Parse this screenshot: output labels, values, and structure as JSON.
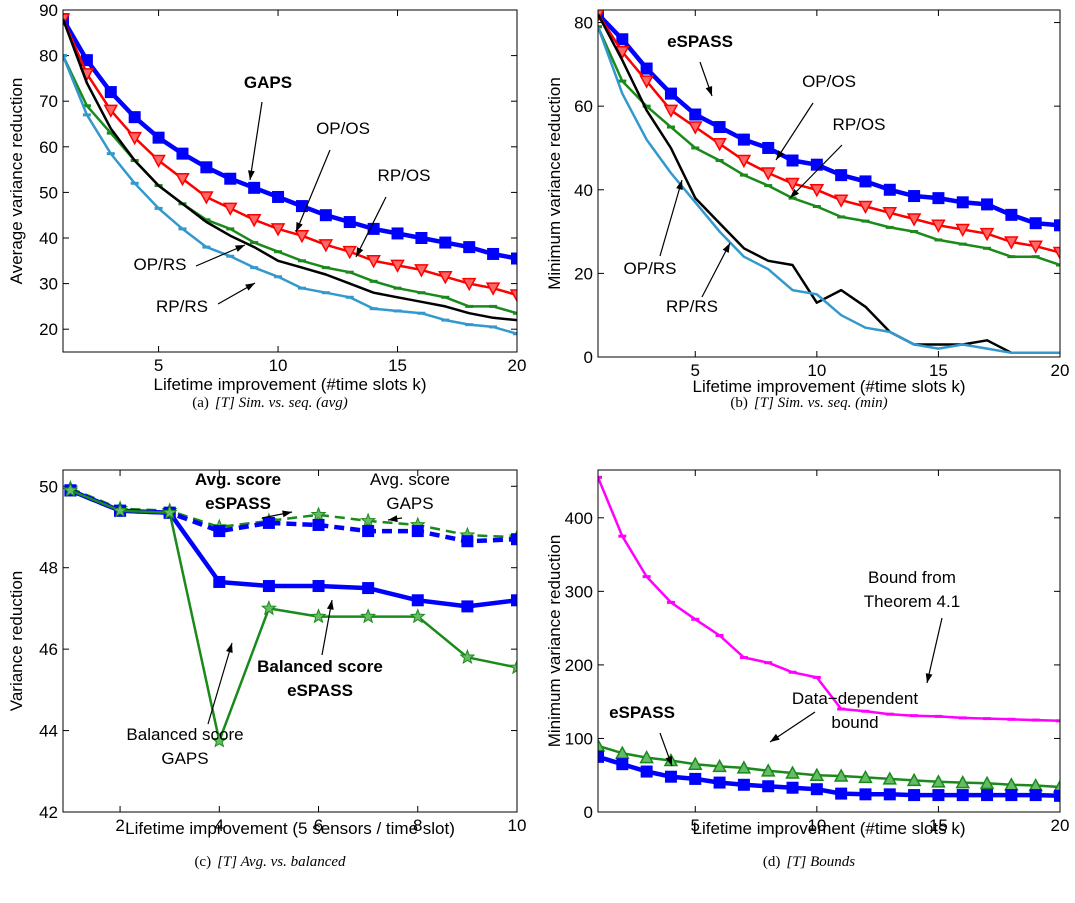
{
  "chart_data": [
    {
      "type": "line",
      "caption_label": "(a)",
      "caption": "[T] Sim. vs. seq. (avg)",
      "x_label": "Lifetime improvement (#time slots k)",
      "y_label": "Average variance reduction",
      "x": [
        1,
        2,
        3,
        4,
        5,
        6,
        7,
        8,
        9,
        10,
        11,
        12,
        13,
        14,
        15,
        16,
        17,
        18,
        19,
        20
      ],
      "xlim": [
        1,
        20
      ],
      "ylim": [
        15,
        90
      ],
      "xticks": [
        5,
        10,
        15,
        20
      ],
      "yticks": [
        20,
        30,
        40,
        50,
        60,
        70,
        80,
        90
      ],
      "series": [
        {
          "color": "#0000ff",
          "marker": "square",
          "linewidth": 4.5,
          "values": [
            88,
            79,
            72,
            66.5,
            62,
            58.5,
            55.5,
            53,
            51,
            49,
            47,
            45,
            43.5,
            42,
            41,
            40,
            39,
            38,
            36.5,
            35.5
          ]
        },
        {
          "color": "#ff0000",
          "marker": "triangle-down",
          "linewidth": 2.5,
          "values": [
            88,
            76,
            68,
            62,
            57,
            53,
            49,
            46.5,
            44,
            42,
            40.5,
            38.5,
            37,
            35,
            34,
            33,
            31.5,
            30,
            29,
            27.5
          ]
        },
        {
          "color": "#1a8a1a",
          "marker": "dash",
          "linewidth": 2.5,
          "values": [
            80,
            69,
            63,
            57,
            51.5,
            47.5,
            44,
            42,
            39,
            37,
            35,
            33.5,
            32.5,
            30.5,
            29,
            28,
            27,
            25,
            25,
            23.5
          ]
        },
        {
          "color": "#000000",
          "marker": "none",
          "linewidth": 2.5,
          "values": [
            88,
            74,
            64,
            57,
            51.5,
            47.5,
            43.5,
            40.5,
            38,
            35,
            33.5,
            32,
            30,
            28,
            27,
            26,
            25,
            23.5,
            22.5,
            22
          ]
        },
        {
          "color": "#3399cc",
          "marker": "dash",
          "linewidth": 2.5,
          "values": [
            80,
            67,
            58.5,
            52,
            46.5,
            42,
            38,
            36,
            33.5,
            31.5,
            29,
            28,
            27,
            24.5,
            24,
            23.5,
            22,
            21,
            20.5,
            19
          ]
        }
      ],
      "annotations": [
        {
          "text": [
            "GAPS"
          ],
          "bold": true
        },
        {
          "text": [
            "OP/OS"
          ]
        },
        {
          "text": [
            "RP/OS"
          ]
        },
        {
          "text": [
            "OP/RS"
          ]
        },
        {
          "text": [
            "RP/RS"
          ]
        }
      ]
    },
    {
      "type": "line",
      "caption_label": "(b)",
      "caption": "[T] Sim. vs. seq. (min)",
      "x_label": "Lifetime improvement (#time slots k)",
      "y_label": "Minimum variance reduction",
      "x": [
        1,
        2,
        3,
        4,
        5,
        6,
        7,
        8,
        9,
        10,
        11,
        12,
        13,
        14,
        15,
        16,
        17,
        18,
        19,
        20
      ],
      "xlim": [
        1,
        20
      ],
      "ylim": [
        0,
        83
      ],
      "xticks": [
        5,
        10,
        15,
        20
      ],
      "yticks": [
        0,
        20,
        40,
        60,
        80
      ],
      "series": [
        {
          "color": "#0000ff",
          "marker": "square",
          "linewidth": 4.5,
          "values": [
            82,
            76,
            69,
            63,
            58,
            55,
            52,
            50,
            47,
            46,
            43.5,
            42,
            40,
            38.5,
            38,
            37,
            36.5,
            34,
            32,
            31.5
          ]
        },
        {
          "color": "#ff0000",
          "marker": "triangle-down",
          "linewidth": 2.5,
          "values": [
            82,
            73,
            66,
            59,
            55,
            51,
            47,
            44,
            41.5,
            40,
            37.5,
            36,
            34.5,
            33,
            31.5,
            30.5,
            29.5,
            27.5,
            26.5,
            25
          ]
        },
        {
          "color": "#1a8a1a",
          "marker": "dash",
          "linewidth": 2.5,
          "values": [
            79,
            66,
            60,
            55,
            50,
            47,
            43.5,
            41,
            38,
            36,
            33.5,
            32.5,
            31,
            30,
            28,
            27,
            26,
            24,
            24,
            22
          ]
        },
        {
          "color": "#000000",
          "marker": "none",
          "linewidth": 2.5,
          "values": [
            82,
            71,
            59,
            50,
            38,
            32,
            26,
            23,
            22,
            13,
            16,
            12,
            6,
            3,
            3,
            3,
            4,
            1,
            1,
            1
          ]
        },
        {
          "color": "#3399cc",
          "marker": "none",
          "linewidth": 2.5,
          "values": [
            79,
            63,
            52,
            44,
            37,
            30,
            24,
            21,
            16,
            15,
            10,
            7,
            6,
            3,
            2,
            3,
            2,
            1,
            1,
            1
          ]
        }
      ],
      "annotations": [
        {
          "text": [
            "eSPASS"
          ],
          "bold": true
        },
        {
          "text": [
            "OP/OS"
          ]
        },
        {
          "text": [
            "RP/OS"
          ]
        },
        {
          "text": [
            "OP/RS"
          ]
        },
        {
          "text": [
            "RP/RS"
          ]
        }
      ]
    },
    {
      "type": "line",
      "caption_label": "(c)",
      "caption": "[T] Avg. vs. balanced",
      "x_label": "Lifetime improvement (5 sensors / time slot)",
      "y_label": "Variance reduction",
      "x": [
        1,
        2,
        3,
        4,
        5,
        6,
        7,
        8,
        9,
        10
      ],
      "xlim": [
        0.85,
        10
      ],
      "ylim": [
        42,
        50.4
      ],
      "xticks": [
        2,
        4,
        6,
        8,
        10
      ],
      "yticks": [
        42,
        44,
        46,
        48,
        50
      ],
      "series": [
        {
          "color": "#1a8a1a",
          "marker": "star",
          "linewidth": 2.5,
          "dashed": true,
          "values": [
            49.95,
            49.45,
            49.4,
            49.0,
            49.15,
            49.3,
            49.15,
            49.05,
            48.8,
            48.75
          ]
        },
        {
          "color": "#0000ff",
          "marker": "square",
          "linewidth": 4.5,
          "dashed": true,
          "values": [
            49.9,
            49.4,
            49.35,
            48.9,
            49.1,
            49.05,
            48.9,
            48.9,
            48.65,
            48.7
          ]
        },
        {
          "color": "#0000ff",
          "marker": "square",
          "linewidth": 4.5,
          "values": [
            49.9,
            49.4,
            49.35,
            47.65,
            47.55,
            47.55,
            47.5,
            47.2,
            47.05,
            47.2
          ]
        },
        {
          "color": "#1a8a1a",
          "marker": "star",
          "linewidth": 2.5,
          "values": [
            49.9,
            49.4,
            49.35,
            43.75,
            47.0,
            46.8,
            46.8,
            46.8,
            45.8,
            45.55
          ]
        }
      ],
      "annotations": [
        {
          "text": [
            "Avg. score",
            "eSPASS"
          ],
          "bold": true
        },
        {
          "text": [
            "Avg. score",
            "GAPS"
          ]
        },
        {
          "text": [
            "Balanced score",
            "eSPASS"
          ],
          "bold": true
        },
        {
          "text": [
            "Balanced score",
            "GAPS"
          ]
        }
      ]
    },
    {
      "type": "line",
      "caption_label": "(d)",
      "caption": "[T] Bounds",
      "x_label": "Lifetime improvement (#time slots k)",
      "y_label": "Minimum variance reduction",
      "x": [
        1,
        2,
        3,
        4,
        5,
        6,
        7,
        8,
        9,
        10,
        11,
        12,
        13,
        14,
        15,
        16,
        17,
        18,
        19,
        20
      ],
      "xlim": [
        1,
        20
      ],
      "ylim": [
        0,
        465
      ],
      "xticks": [
        5,
        10,
        15,
        20
      ],
      "yticks": [
        0,
        100,
        200,
        300,
        400
      ],
      "series": [
        {
          "color": "#ff00ff",
          "marker": "dash",
          "linewidth": 2.5,
          "values": [
            455,
            375,
            320,
            285,
            262,
            240,
            210,
            203,
            190,
            183,
            140,
            137,
            133,
            131,
            130,
            128,
            127,
            126,
            125,
            124
          ]
        },
        {
          "color": "#1a8a1a",
          "marker": "triangle-up",
          "linewidth": 2.5,
          "values": [
            90,
            80,
            74,
            70,
            65,
            62,
            60,
            56,
            53,
            50,
            49,
            47,
            45,
            43,
            41,
            40,
            39,
            37,
            36,
            34
          ]
        },
        {
          "color": "#0000ff",
          "marker": "square",
          "linewidth": 4.5,
          "values": [
            75,
            65,
            55,
            48,
            45,
            40,
            37,
            35,
            33,
            31,
            25,
            24,
            24,
            23,
            23,
            23,
            23,
            23,
            23,
            22
          ]
        }
      ],
      "annotations": [
        {
          "text": [
            "Bound from",
            "Theorem 4.1"
          ]
        },
        {
          "text": [
            "Data−dependent",
            "bound"
          ]
        },
        {
          "text": [
            "eSPASS"
          ],
          "bold": true
        }
      ]
    }
  ]
}
